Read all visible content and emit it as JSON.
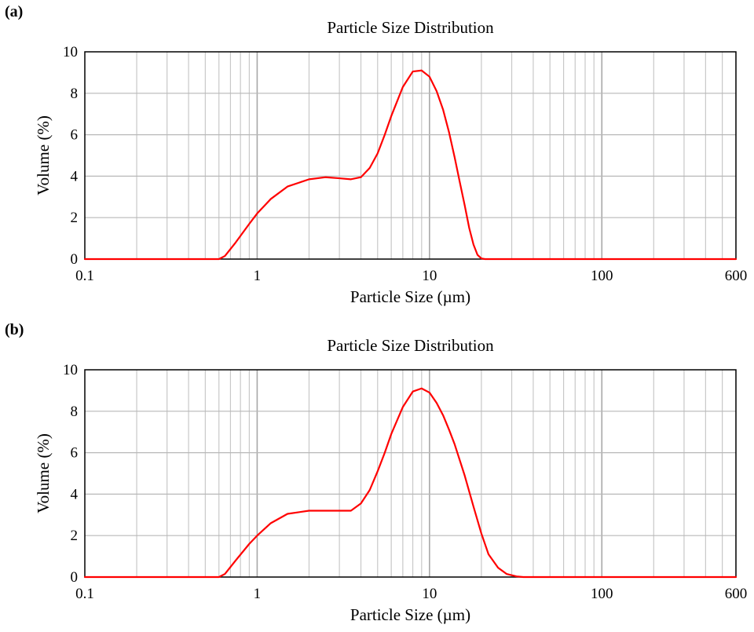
{
  "chart_data": [
    {
      "panel_label": "(a)",
      "type": "line",
      "title": "Particle Size Distribution",
      "xlabel": "Particle Size (µm)",
      "ylabel": "Volume (%)",
      "xscale": "log",
      "xlim": [
        0.1,
        600
      ],
      "ylim": [
        0,
        10
      ],
      "xticks": [
        0.1,
        1,
        10,
        100,
        600
      ],
      "xtick_labels": [
        "0.1",
        "1",
        "10",
        "100",
        "600"
      ],
      "yticks": [
        0,
        2,
        4,
        6,
        8,
        10
      ],
      "ytick_labels": [
        "0",
        "2",
        "4",
        "6",
        "8",
        "10"
      ],
      "grid": true,
      "line_color": "#ff0000",
      "series": [
        {
          "x": [
            0.1,
            0.6,
            0.65,
            0.75,
            0.9,
            1.0,
            1.2,
            1.5,
            2.0,
            2.5,
            3.0,
            3.5,
            4.0,
            4.5,
            5.0,
            5.5,
            6.0,
            7.0,
            8.0,
            9.0,
            10.0,
            11.0,
            12.0,
            13.0,
            14.0,
            15.0,
            16.0,
            17.0,
            18.0,
            19.0,
            20.0,
            21.0,
            600
          ],
          "y": [
            0,
            0,
            0.15,
            0.8,
            1.7,
            2.2,
            2.9,
            3.5,
            3.85,
            3.95,
            3.9,
            3.85,
            3.95,
            4.4,
            5.1,
            6.0,
            6.9,
            8.3,
            9.05,
            9.1,
            8.8,
            8.1,
            7.2,
            6.1,
            4.9,
            3.7,
            2.6,
            1.5,
            0.7,
            0.2,
            0.03,
            0,
            0
          ]
        }
      ]
    },
    {
      "panel_label": "(b)",
      "type": "line",
      "title": "Particle Size Distribution",
      "xlabel": "Particle Size (µm)",
      "ylabel": "Volume (%)",
      "xscale": "log",
      "xlim": [
        0.1,
        600
      ],
      "ylim": [
        0,
        10
      ],
      "xticks": [
        0.1,
        1,
        10,
        100,
        600
      ],
      "xtick_labels": [
        "0.1",
        "1",
        "10",
        "100",
        "600"
      ],
      "yticks": [
        0,
        2,
        4,
        6,
        8,
        10
      ],
      "ytick_labels": [
        "0",
        "2",
        "4",
        "6",
        "8",
        "10"
      ],
      "grid": true,
      "line_color": "#ff0000",
      "series": [
        {
          "x": [
            0.1,
            0.6,
            0.65,
            0.75,
            0.9,
            1.0,
            1.2,
            1.5,
            2.0,
            2.5,
            3.0,
            3.5,
            4.0,
            4.5,
            5.0,
            5.5,
            6.0,
            7.0,
            8.0,
            9.0,
            10.0,
            11.0,
            12.0,
            13.0,
            14.0,
            16.0,
            18.0,
            20.0,
            22.0,
            25.0,
            28.0,
            32.0,
            35.0,
            600
          ],
          "y": [
            0,
            0,
            0.15,
            0.8,
            1.6,
            2.0,
            2.6,
            3.05,
            3.2,
            3.2,
            3.2,
            3.2,
            3.55,
            4.2,
            5.1,
            6.0,
            6.9,
            8.2,
            8.95,
            9.1,
            8.9,
            8.4,
            7.8,
            7.1,
            6.4,
            4.9,
            3.4,
            2.1,
            1.1,
            0.45,
            0.15,
            0.03,
            0,
            0
          ]
        }
      ]
    }
  ]
}
